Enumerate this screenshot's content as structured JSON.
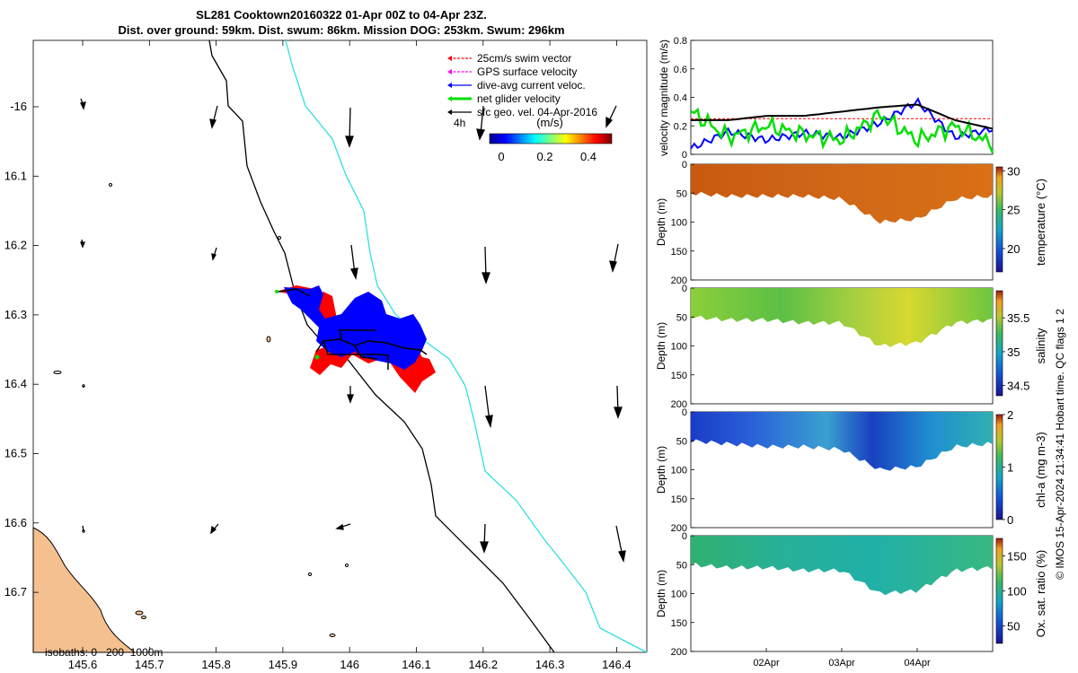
{
  "title": {
    "line1": "SL281 Cooktown20160322 01-Apr 00Z to 04-Apr 23Z.",
    "line2": "Dist. over ground: 59km. Dist. swum: 86km. Mission DOG: 253km. Swum: 296km"
  },
  "map": {
    "x_ticks": [
      "145.6",
      "145.7",
      "145.8",
      "145.9",
      "146",
      "146.1",
      "146.2",
      "146.3",
      "146.4"
    ],
    "y_ticks": [
      "-16",
      "16.1",
      "16.2",
      "16.3",
      "16.4",
      "16.5",
      "16.6",
      "16.7"
    ],
    "legend": [
      {
        "label": "25cm/s swim vector",
        "color": "#ff0000"
      },
      {
        "label": "GPS surface velocity",
        "color": "#ff00ff"
      },
      {
        "label": "dive-avg current veloc.",
        "color": "#0000ff"
      },
      {
        "label": "net glider velocity",
        "color": "#00e000"
      },
      {
        "label": "sfc geo. vel. 04-Apr-2016",
        "color": "#000000"
      }
    ],
    "time_label": "4h",
    "colorbar_title": "(m/s)",
    "colorbar_ticks": [
      "0",
      "0.2",
      "0.4"
    ],
    "isobaths_label": "isobaths: 0   200  1000m",
    "land_color": "#f5c08f",
    "isobath_200_color": "#000000",
    "isobath_1000_color": "#30e0e0"
  },
  "right_panels": {
    "date_ticks": [
      "02Apr",
      "03Apr",
      "04Apr"
    ],
    "depth_label": "Depth (m)",
    "depth_ticks": [
      "0",
      "50",
      "100",
      "150",
      "200"
    ],
    "credit": "© IMOS 15-Apr-2024 21:34:41 Hobart time. QC flags 1  2"
  },
  "chart_data": [
    {
      "type": "line",
      "title": "",
      "ylabel": "velocity magnitude (m/s)",
      "ylim": [
        0,
        0.8
      ],
      "yticks": [
        "0",
        "0.2",
        "0.4",
        "0.6",
        "0.8"
      ],
      "x": [
        "01-Apr 00Z",
        "01-Apr 12Z",
        "02-Apr 00Z",
        "02-Apr 12Z",
        "03-Apr 00Z",
        "03-Apr 12Z",
        "04-Apr 00Z",
        "04-Apr 12Z",
        "04-Apr 23Z"
      ],
      "series": [
        {
          "name": "25cm/s swim vector",
          "color": "#ff0000",
          "values": [
            0.25,
            0.25,
            0.25,
            0.25,
            0.25,
            0.25,
            0.25,
            0.25,
            0.25
          ]
        },
        {
          "name": "dive-avg current veloc.",
          "color": "#0000ff",
          "values": [
            0.04,
            0.16,
            0.1,
            0.15,
            0.12,
            0.22,
            0.37,
            0.12,
            0.18
          ]
        },
        {
          "name": "net glider velocity",
          "color": "#00e000",
          "values": [
            0.3,
            0.12,
            0.2,
            0.14,
            0.1,
            0.28,
            0.1,
            0.2,
            0.07
          ]
        },
        {
          "name": "sfc geo. vel. 04-Apr-2016",
          "color": "#000000",
          "values": [
            0.24,
            0.24,
            0.27,
            0.27,
            0.3,
            0.33,
            0.35,
            0.24,
            0.18
          ]
        }
      ]
    },
    {
      "type": "heatmap",
      "cblabel": "temperature (°C)",
      "clim": [
        17,
        30.5
      ],
      "cticks": [
        "20",
        "25",
        "30"
      ],
      "ylim": [
        0,
        200
      ],
      "value_range": [
        27,
        30
      ],
      "bottom_depth_m": [
        50,
        55,
        55,
        55,
        60,
        100,
        95,
        60,
        55
      ]
    },
    {
      "type": "heatmap",
      "cblabel": "salinity",
      "clim": [
        34.35,
        35.9
      ],
      "cticks": [
        "34.5",
        "35",
        "35.5"
      ],
      "ylim": [
        0,
        200
      ],
      "value_range": [
        35.0,
        35.6
      ],
      "bottom_depth_m": [
        50,
        55,
        55,
        60,
        60,
        100,
        95,
        60,
        55
      ]
    },
    {
      "type": "heatmap",
      "cblabel": "chl-a (mg m-3)",
      "clim": [
        0,
        2
      ],
      "cticks": [
        "0",
        "1",
        "2"
      ],
      "ylim": [
        0,
        200
      ],
      "value_range": [
        0.1,
        1.0
      ],
      "bottom_depth_m": [
        50,
        55,
        60,
        60,
        65,
        100,
        95,
        60,
        55
      ]
    },
    {
      "type": "heatmap",
      "cblabel": "Ox. sat. ratio (%)",
      "clim": [
        25,
        175
      ],
      "cticks": [
        "50",
        "100",
        "150"
      ],
      "ylim": [
        0,
        200
      ],
      "value_range": [
        90,
        150
      ],
      "bottom_depth_m": [
        50,
        55,
        55,
        60,
        60,
        100,
        95,
        60,
        55
      ]
    }
  ]
}
